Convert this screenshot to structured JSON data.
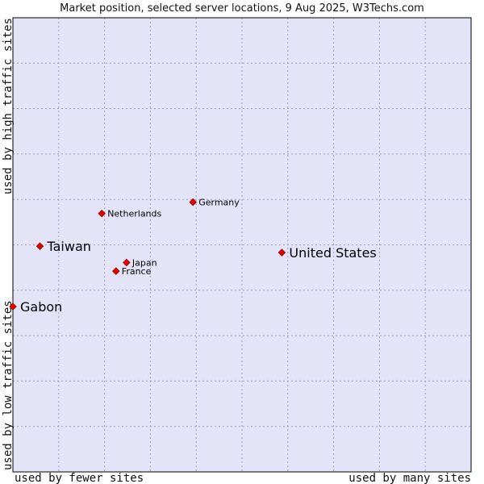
{
  "chart_data": {
    "type": "scatter",
    "title": "Market position, selected server locations, 9 Aug 2025, W3Techs.com",
    "xlabel_left": "used by fewer sites",
    "xlabel_right": "used by many sites",
    "ylabel_bottom": "used by low traffic sites",
    "ylabel_top": "used by high traffic sites",
    "xlim": [
      0,
      10
    ],
    "ylim": [
      0,
      10
    ],
    "grid": true,
    "colors": {
      "plot_background": "#e3e4f7",
      "grid": "#9b9bbb",
      "marker": "#e00000",
      "marker_stroke": "#a00000",
      "frame": "#000000"
    },
    "points": [
      {
        "label": "United States",
        "x": 5.87,
        "y": 4.83,
        "size": "large"
      },
      {
        "label": "Taiwan",
        "x": 0.59,
        "y": 4.97,
        "size": "large"
      },
      {
        "label": "Gabon",
        "x": 0.0,
        "y": 3.64,
        "size": "large"
      },
      {
        "label": "Germany",
        "x": 3.93,
        "y": 5.94,
        "size": "small"
      },
      {
        "label": "Netherlands",
        "x": 1.94,
        "y": 5.69,
        "size": "small"
      },
      {
        "label": "Japan",
        "x": 2.48,
        "y": 4.61,
        "size": "small"
      },
      {
        "label": "France",
        "x": 2.25,
        "y": 4.42,
        "size": "small"
      }
    ]
  }
}
